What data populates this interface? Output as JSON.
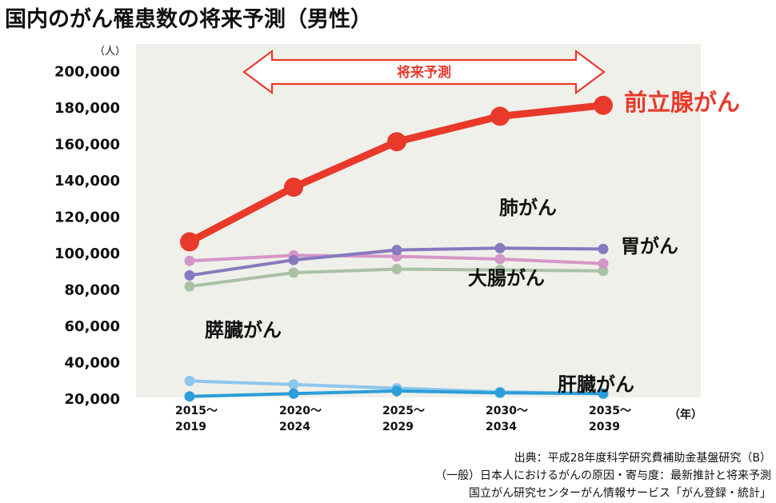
{
  "title": "国内のがん罹患数の将来予測（男性）",
  "y_unit": "（人）",
  "x_unit": "（年）",
  "forecast_label": "将来予測",
  "source_lines": [
    "出典：平成28年度科学研究費補助金基盤研究（B）",
    "（一般）日本人におけるがんの原因・寄与度：最新推計と将来予測",
    "国立がん研究センターがん情報サービス「がん登録・統計」"
  ],
  "chart_data": {
    "type": "line",
    "title": "国内のがん罹患数の将来予測（男性）",
    "xlabel": "（年）",
    "ylabel": "（人）",
    "x": [
      [
        "2015～",
        "2019"
      ],
      [
        "2020～",
        "2024"
      ],
      [
        "2025～",
        "2029"
      ],
      [
        "2030～",
        "2034"
      ],
      [
        "2035～",
        "2039"
      ]
    ],
    "ylim": [
      0,
      200000
    ],
    "y_tick_values": [
      20000,
      40000,
      60000,
      80000,
      100000,
      120000,
      140000,
      160000,
      180000,
      200000
    ],
    "y_tick_labels": [
      "20,000",
      "40,000",
      "60,000",
      "80,000",
      "100,000",
      "120,000",
      "140,000",
      "160,000",
      "180,000",
      "200,000"
    ],
    "grid": false,
    "series": [
      {
        "name": "前立腺がん",
        "color": "#e8392b",
        "emphasis": true,
        "values": [
          106000,
          136000,
          161000,
          175000,
          181000
        ]
      },
      {
        "name": "肺がん",
        "color": "#8879bf",
        "values": [
          87500,
          96000,
          101500,
          102500,
          102000
        ]
      },
      {
        "name": "胃がん",
        "color": "#d596c8",
        "values": [
          95500,
          98500,
          98000,
          96500,
          94000
        ]
      },
      {
        "name": "大腸がん",
        "color": "#a9c2a6",
        "values": [
          81500,
          89000,
          91000,
          90500,
          90000
        ]
      },
      {
        "name": "膵臓がん",
        "color": "#8ec6ee",
        "values": [
          29500,
          27500,
          25500,
          23500,
          22500
        ]
      },
      {
        "name": "肝臓がん",
        "color": "#2c9ed9",
        "values": [
          21000,
          22500,
          24000,
          23000,
          22500
        ]
      }
    ]
  }
}
